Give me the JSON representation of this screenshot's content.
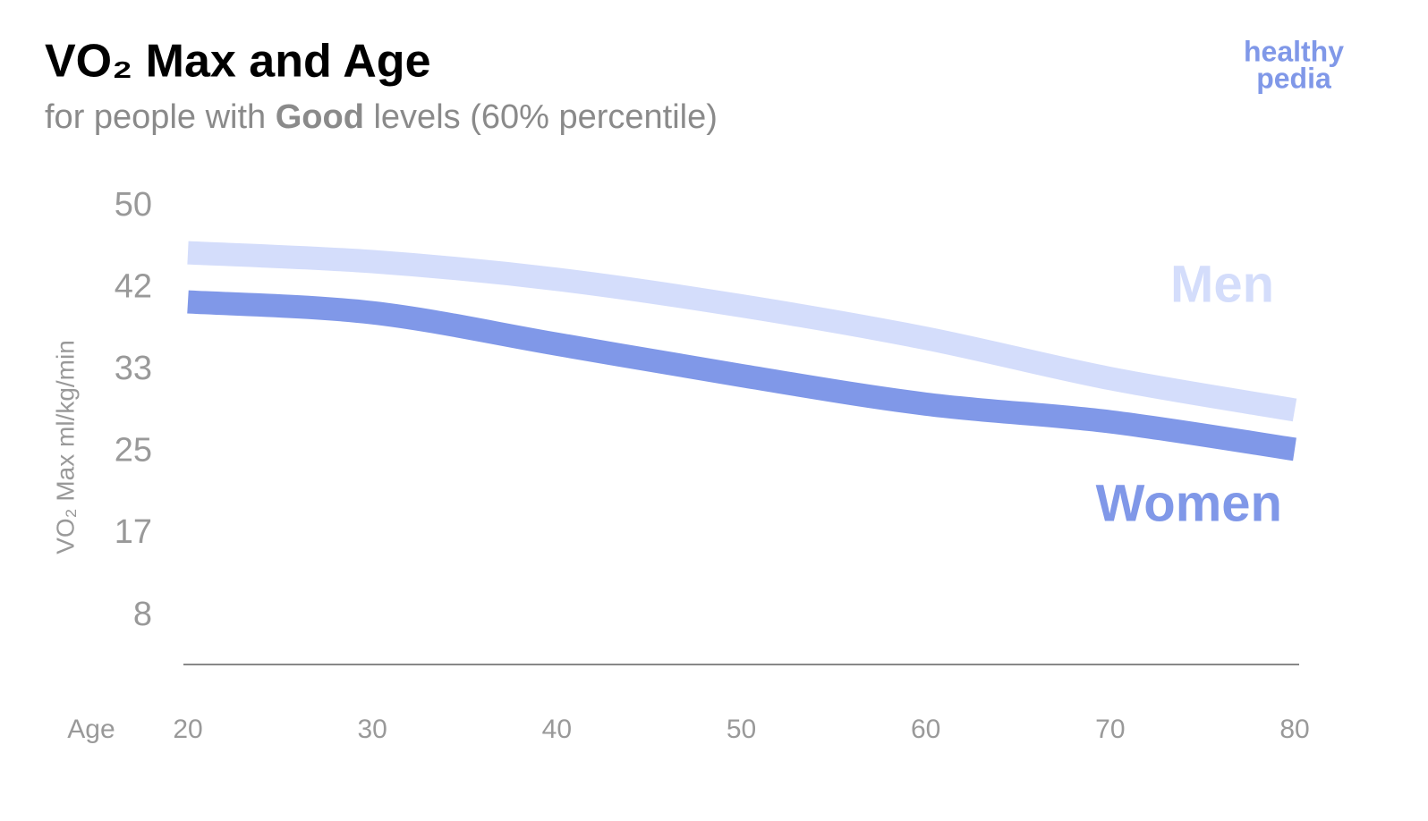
{
  "chart_data": {
    "type": "line",
    "title": "VO₂ Max and Age",
    "subtitle": [
      "for people with ",
      "Good",
      " levels (60% percentile)"
    ],
    "logo": [
      "healthy",
      "pedia"
    ],
    "x_label": "Age",
    "y_label": "VO₂ Max ml/kg/min",
    "x": [
      20,
      30,
      40,
      50,
      60,
      70,
      80
    ],
    "xlim": [
      20,
      80
    ],
    "xticks": [
      20,
      30,
      40,
      50,
      60,
      70,
      80
    ],
    "ylim": [
      3.4,
      50
    ],
    "yticks": [
      {
        "value": 8.33,
        "label": "8"
      },
      {
        "value": 16.67,
        "label": "17"
      },
      {
        "value": 25,
        "label": "25"
      },
      {
        "value": 33.33,
        "label": "33"
      },
      {
        "value": 41.67,
        "label": "42"
      },
      {
        "value": 50,
        "label": "50"
      }
    ],
    "grid": false,
    "series": [
      {
        "name": "Men",
        "color": "#d4ddfb",
        "values": [
          45.3,
          44.4,
          42.6,
          39.9,
          36.6,
          32.5,
          29.3
        ]
      },
      {
        "name": "Women",
        "color": "#8098e8",
        "values": [
          40.3,
          39.2,
          36.0,
          32.8,
          29.9,
          28.1,
          25.3
        ]
      }
    ]
  }
}
